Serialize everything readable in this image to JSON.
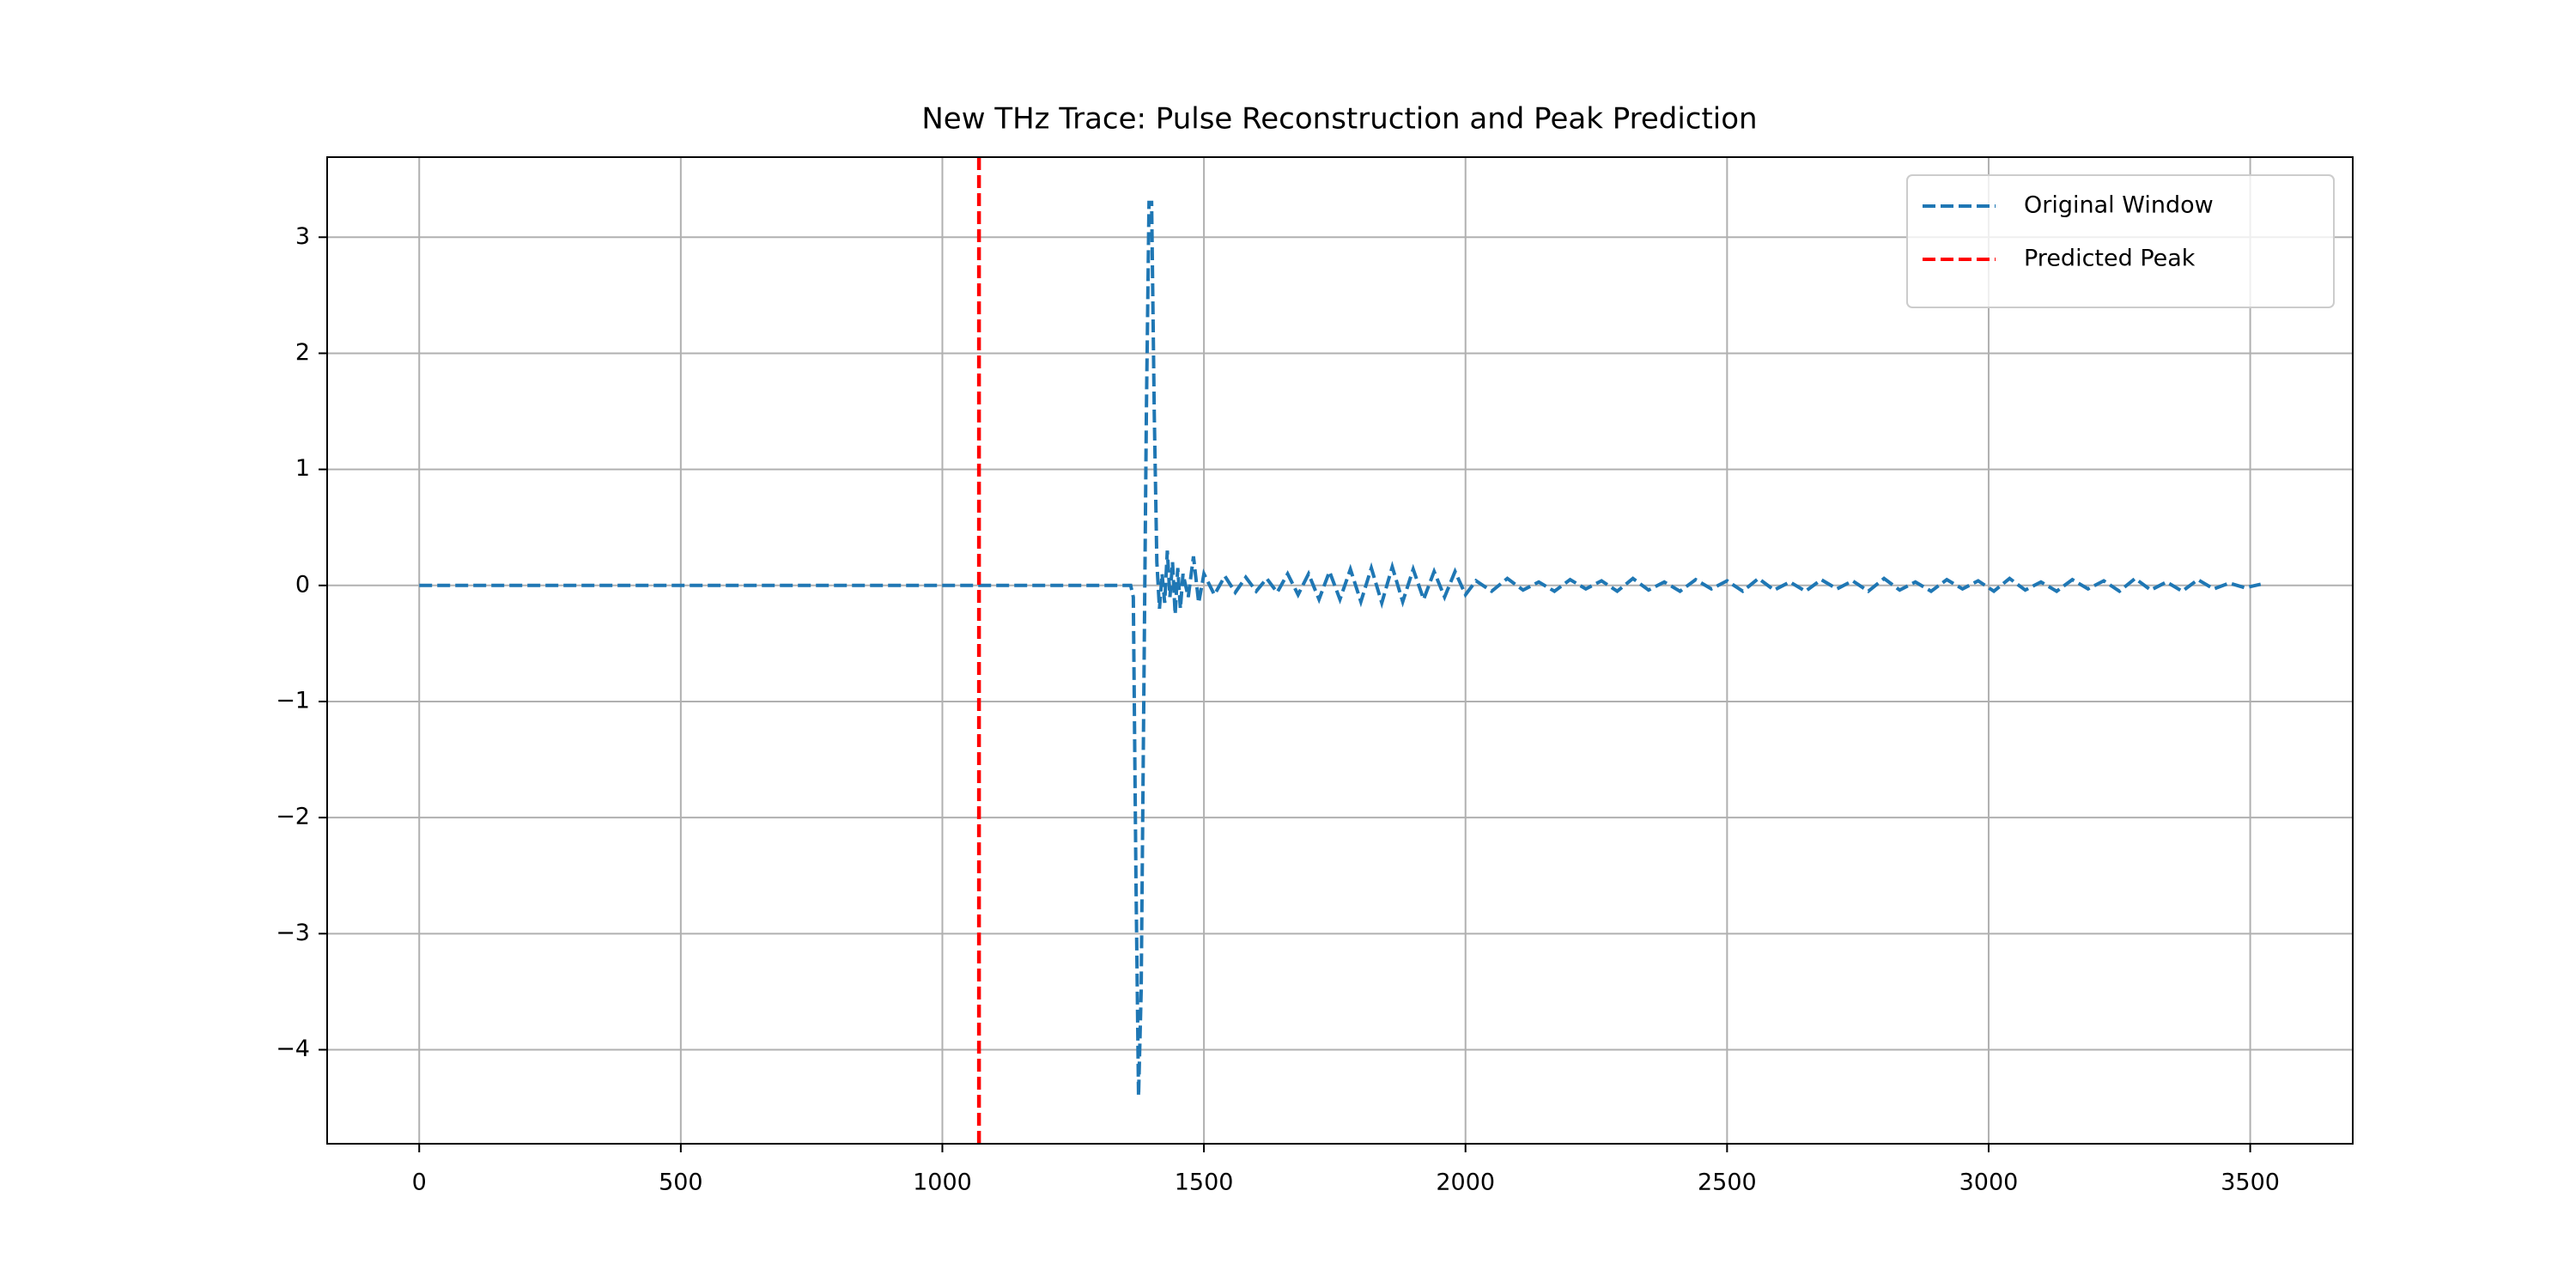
{
  "chart_data": {
    "type": "line",
    "title": "New THz Trace: Pulse Reconstruction and Peak Prediction",
    "x": [
      0,
      500,
      1000,
      1360,
      1365,
      1370,
      1375,
      1380,
      1385,
      1390,
      1395,
      1400,
      1405,
      1410,
      1415,
      1420,
      1425,
      1430,
      1435,
      1440,
      1445,
      1450,
      1455,
      1460,
      1470,
      1480,
      1490,
      1500,
      1520,
      1540,
      1560,
      1580,
      1600,
      1620,
      1640,
      1660,
      1680,
      1700,
      1720,
      1740,
      1760,
      1780,
      1800,
      1820,
      1840,
      1860,
      1880,
      1900,
      1920,
      1940,
      1960,
      1980,
      2000,
      2020,
      2050,
      2080,
      2110,
      2140,
      2170,
      2200,
      2230,
      2260,
      2290,
      2320,
      2350,
      2380,
      2410,
      2440,
      2470,
      2500,
      2530,
      2560,
      2590,
      2620,
      2650,
      2680,
      2710,
      2740,
      2770,
      2800,
      2830,
      2860,
      2890,
      2920,
      2950,
      2980,
      3010,
      3040,
      3070,
      3100,
      3130,
      3160,
      3190,
      3220,
      3250,
      3280,
      3310,
      3340,
      3370,
      3400,
      3430,
      3460,
      3490,
      3520
    ],
    "series": [
      {
        "name": "Original Window",
        "color": "#1f77b4",
        "values": [
          0,
          0,
          0,
          0,
          -0.1,
          -2.5,
          -4.4,
          -3.5,
          -1,
          1.5,
          3.3,
          3.3,
          1.5,
          0.2,
          -0.2,
          0.1,
          -0.15,
          0.3,
          -0.1,
          0.2,
          -0.25,
          0.15,
          -0.2,
          0.1,
          -0.1,
          0.25,
          -0.15,
          0.1,
          -0.08,
          0.08,
          -0.06,
          0.07,
          -0.05,
          0.06,
          -0.06,
          0.1,
          -0.08,
          0.1,
          -0.12,
          0.12,
          -0.12,
          0.14,
          -0.14,
          0.15,
          -0.15,
          0.16,
          -0.14,
          0.14,
          -0.12,
          0.12,
          -0.1,
          0.12,
          -0.08,
          0.04,
          -0.05,
          0.06,
          -0.04,
          0.03,
          -0.05,
          0.05,
          -0.03,
          0.04,
          -0.05,
          0.06,
          -0.04,
          0.03,
          -0.05,
          0.05,
          -0.03,
          0.04,
          -0.05,
          0.06,
          -0.04,
          0.03,
          -0.05,
          0.05,
          -0.03,
          0.04,
          -0.05,
          0.06,
          -0.04,
          0.03,
          -0.05,
          0.05,
          -0.03,
          0.04,
          -0.05,
          0.06,
          -0.04,
          0.03,
          -0.05,
          0.05,
          -0.03,
          0.04,
          -0.05,
          0.06,
          -0.04,
          0.03,
          -0.05,
          0.05,
          -0.03,
          0.02,
          -0.02,
          0.01
        ]
      }
    ],
    "vlines": [
      {
        "name": "Predicted Peak",
        "color": "#ff0000",
        "x": 1070
      }
    ],
    "xlim": [
      -176,
      3696
    ],
    "ylim": [
      -4.81,
      3.69
    ],
    "xticks": [
      0,
      500,
      1000,
      1500,
      2000,
      2500,
      3000,
      3500
    ],
    "yticks": [
      {
        "value": -4,
        "label": "−4"
      },
      {
        "value": -3,
        "label": "−3"
      },
      {
        "value": -2,
        "label": "−2"
      },
      {
        "value": -1,
        "label": "−1"
      },
      0,
      1,
      2,
      3
    ],
    "grid": true,
    "legend": "upper right"
  }
}
